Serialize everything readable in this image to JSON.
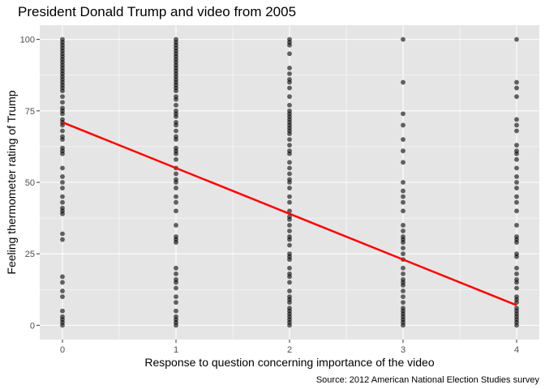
{
  "chart_data": {
    "type": "scatter",
    "title": "President Donald Trump and video from 2005",
    "xlabel": "Response to question concerning importance of the video",
    "ylabel": "Feeling thermometer rating of Trump",
    "caption": "Source: 2012 American National Election Studies survey",
    "xlim": [
      -0.2,
      4.2
    ],
    "ylim": [
      -5,
      105
    ],
    "x_ticks": [
      0,
      1,
      2,
      3,
      4
    ],
    "x_tick_labels": [
      "0",
      "1",
      "2",
      "3",
      "4"
    ],
    "y_ticks": [
      0,
      25,
      50,
      75,
      100
    ],
    "y_tick_labels": [
      "0",
      "25",
      "50",
      "75",
      "100"
    ],
    "grid": true,
    "panel_background": "#e5e5e5",
    "grid_color": "#ffffff",
    "point_color": "#000000",
    "point_opacity": 0.6,
    "trend_line": {
      "color": "#ff0000",
      "x": [
        0,
        4
      ],
      "y": [
        71,
        7
      ]
    },
    "series": [
      {
        "x": 0,
        "values": [
          100,
          99,
          98,
          97,
          96,
          95,
          94,
          93,
          92,
          91,
          90,
          89,
          88,
          87,
          86,
          85,
          84,
          83,
          82,
          80,
          78,
          76,
          75,
          74,
          72,
          71,
          70,
          68,
          66,
          65,
          62,
          61,
          60,
          55,
          52,
          50,
          48,
          45,
          43,
          41,
          40,
          39,
          32,
          30,
          17,
          15,
          12,
          10,
          5,
          3,
          2,
          1,
          0
        ]
      },
      {
        "x": 1,
        "values": [
          100,
          99,
          98,
          97,
          96,
          95,
          94,
          93,
          92,
          91,
          90,
          89,
          88,
          87,
          86,
          85,
          84,
          83,
          82,
          80,
          79,
          77,
          75,
          74,
          73,
          71,
          70,
          68,
          66,
          65,
          62,
          61,
          60,
          58,
          55,
          53,
          51,
          50,
          48,
          45,
          43,
          40,
          35,
          31,
          30,
          29,
          20,
          18,
          16,
          15,
          13,
          10,
          8,
          5,
          3,
          2,
          1,
          0
        ]
      },
      {
        "x": 2,
        "values": [
          100,
          99,
          98,
          95,
          90,
          88,
          86,
          85,
          83,
          80,
          77,
          75,
          74,
          73,
          72,
          71,
          70,
          69,
          68,
          67,
          65,
          63,
          61,
          60,
          57,
          55,
          53,
          51,
          50,
          48,
          45,
          43,
          40,
          38,
          37,
          35,
          33,
          31,
          30,
          28,
          25,
          24,
          23,
          20,
          18,
          17,
          15,
          12,
          10,
          9,
          8,
          6,
          5,
          4,
          3,
          2,
          1,
          0
        ]
      },
      {
        "x": 3,
        "values": [
          100,
          85,
          74,
          70,
          65,
          61,
          57,
          50,
          47,
          45,
          43,
          40,
          35,
          33,
          31,
          30,
          29,
          27,
          25,
          23,
          20,
          18,
          16,
          15,
          14,
          12,
          10,
          8,
          6,
          5,
          4,
          3,
          2,
          1,
          0
        ]
      },
      {
        "x": 4,
        "values": [
          100,
          85,
          83,
          80,
          72,
          70,
          68,
          63,
          61,
          60,
          58,
          55,
          52,
          50,
          48,
          45,
          43,
          40,
          35,
          31,
          30,
          29,
          25,
          24,
          20,
          18,
          16,
          15,
          13,
          10,
          9,
          8,
          6,
          5,
          4,
          3,
          2,
          1,
          0
        ]
      }
    ]
  }
}
